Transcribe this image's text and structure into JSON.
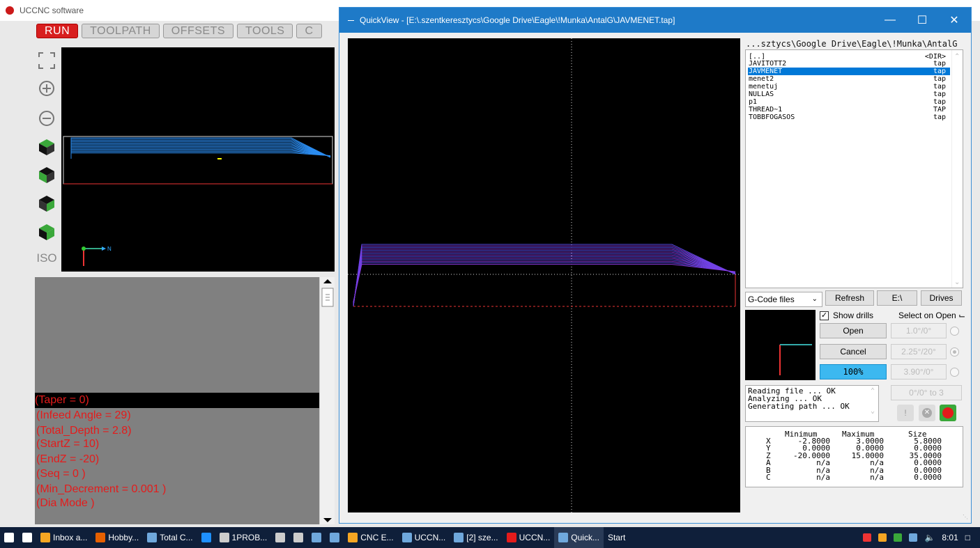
{
  "app": {
    "title": "UCCNC software",
    "tabs": [
      "RUN",
      "TOOLPATH",
      "OFFSETS",
      "TOOLS",
      "C"
    ],
    "view_buttons": [
      "fit-icon",
      "zoom-in-icon",
      "zoom-out-icon",
      "cube-top-icon",
      "cube-front-icon",
      "cube-right-icon",
      "cube-side-icon"
    ],
    "iso_label": "ISO",
    "axis_label": "N",
    "gcode_lines": [
      "(Taper = 0)",
      "(Infeed Angle = 29)",
      "(Total_Depth = 2.8)",
      "(StartZ = 10)",
      "(EndZ = -20)",
      "(Seq = 0 )",
      "(Min_Decrement = 0.001 )",
      "(Dia Mode )"
    ],
    "gcode_selected_index": 0,
    "colors": {
      "run_tab": "#d81e1e",
      "gcode_text": "#e41b1b",
      "toolpath": "#2b8cf0"
    }
  },
  "quickview": {
    "title": "QuickView - [E:\\.szentkeresztycs\\Google Drive\\Eagle\\!Munka\\AntalG\\JAVMENET.tap]",
    "path_label": "...sztycs\\Google Drive\\Eagle\\!Munka\\AntalG",
    "files": [
      {
        "name": "[..]",
        "type": "<DIR>"
      },
      {
        "name": "JAVITOTT2",
        "type": "tap"
      },
      {
        "name": "JAVMENET",
        "type": "tap"
      },
      {
        "name": "menet2",
        "type": "tap"
      },
      {
        "name": "menetuj",
        "type": "tap"
      },
      {
        "name": "NULLAS",
        "type": "tap"
      },
      {
        "name": "p1",
        "type": "tap"
      },
      {
        "name": "THREAD~1",
        "type": "TAP"
      },
      {
        "name": "TOBBFOGASOS",
        "type": "tap"
      }
    ],
    "selected_file_index": 2,
    "filter": "G-Code files",
    "refresh_label": "Refresh",
    "drive_label": "E:\\",
    "drives_label": "Drives",
    "show_drills_label": "Show drills",
    "show_drills_checked": true,
    "select_on_open_label": "Select on Open",
    "open_label": "Open",
    "cancel_label": "Cancel",
    "zoom_label": "100%",
    "angle_options": [
      "1.0°/0°",
      "2.25°/20°",
      "3.90°/0°"
    ],
    "angle_selected_index": 1,
    "range_label": "0°/0° to 3",
    "log_lines": [
      "Reading file ... OK",
      "Analyzing ... OK",
      "Generating path ... OK"
    ],
    "dims": {
      "headers": [
        "Minimum",
        "Maximum",
        "Size"
      ],
      "rows": [
        {
          "axis": "X",
          "min": "-2.8000",
          "max": "3.0000",
          "size": "5.8000"
        },
        {
          "axis": "Y",
          "min": "0.0000",
          "max": "0.0000",
          "size": "0.0000"
        },
        {
          "axis": "Z",
          "min": "-20.0000",
          "max": "15.0000",
          "size": "35.0000"
        },
        {
          "axis": "A",
          "min": "n/a",
          "max": "n/a",
          "size": "0.0000"
        },
        {
          "axis": "B",
          "min": "n/a",
          "max": "n/a",
          "size": "0.0000"
        },
        {
          "axis": "C",
          "min": "n/a",
          "max": "n/a",
          "size": "0.0000"
        }
      ]
    },
    "window_buttons": [
      "minimize-icon",
      "maximize-icon",
      "close-icon"
    ]
  },
  "taskbar": {
    "items": [
      {
        "label": "",
        "icon": "windows-start-icon",
        "color": "#ffffff"
      },
      {
        "label": "",
        "icon": "task-view-icon",
        "color": "#ffffff"
      },
      {
        "label": "Inbox a...",
        "icon": "mail-icon",
        "color": "#f5a623"
      },
      {
        "label": "Hobby...",
        "icon": "firefox-icon",
        "color": "#e66000"
      },
      {
        "label": "Total C...",
        "icon": "floppy-icon",
        "color": "#6fa8dc"
      },
      {
        "label": "",
        "icon": "ie-icon",
        "color": "#1e90ff"
      },
      {
        "label": "1PROB...",
        "icon": "app-icon",
        "color": "#cccccc"
      },
      {
        "label": "",
        "icon": "calculator-icon",
        "color": "#cccccc"
      },
      {
        "label": "",
        "icon": "console-icon",
        "color": "#cccccc"
      },
      {
        "label": "",
        "icon": "disk-icon",
        "color": "#6fa8dc"
      },
      {
        "label": "",
        "icon": "wave-icon",
        "color": "#6fa8dc"
      },
      {
        "label": "CNC E...",
        "icon": "cnc-icon",
        "color": "#f5a623"
      },
      {
        "label": "UCCN...",
        "icon": "uccnc-icon",
        "color": "#6fa8dc"
      },
      {
        "label": "[2] sze...",
        "icon": "floppy-icon",
        "color": "#6fa8dc"
      },
      {
        "label": "UCCN...",
        "icon": "uccnc-red-icon",
        "color": "#e41b1b"
      },
      {
        "label": "Quick...",
        "icon": "quickview-icon",
        "color": "#6fa8dc"
      },
      {
        "label": "Start",
        "icon": "",
        "color": "#ffffff"
      }
    ],
    "active_index": 15,
    "clock": "8:01"
  }
}
